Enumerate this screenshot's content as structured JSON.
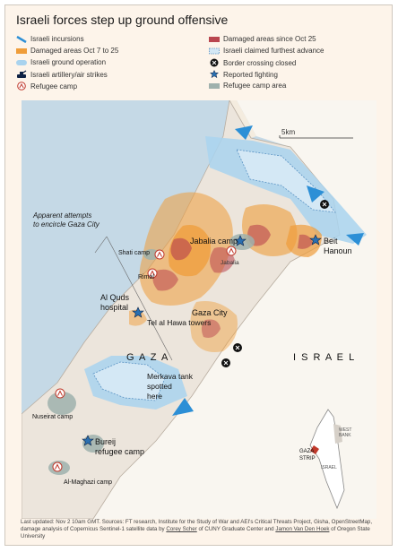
{
  "title": "Israeli forces step up ground offensive",
  "legend": {
    "incursions": "Israeli incursions",
    "damaged_early": "Damaged areas Oct 7 to 25",
    "ground_op": "Israeli ground operation",
    "artillery": "Israeli artillery/air strikes",
    "refugee_camp": "Refugee camp",
    "damaged_late": "Damaged areas since Oct 25",
    "claimed_advance": "Israeli claimed furthest advance",
    "border_closed": "Border crossing closed",
    "fighting": "Reported fighting",
    "camp_area": "Refugee camp area"
  },
  "colors": {
    "sea": "#c5d9e6",
    "land": "#f4ecdf",
    "israel": "#f9f6f0",
    "strip": "#ece5dc",
    "ops": "#a9d3ee",
    "damage_early": "#ef9d3a",
    "damage_late": "#b9464f",
    "navy": "#0f2244",
    "camp_red": "#c0392b"
  },
  "map": {
    "scale": "5km",
    "annotation": "Apparent attempts to encircle Gaza City",
    "region_gaza": "G A Z A",
    "region_israel": "I S R A E L",
    "places": {
      "jabalia_camp": "Jabalia camp",
      "beit_hanoun": "Beit Hanoun",
      "shati": "Shati camp",
      "jabalia": "Jabalia",
      "rimal": "Rimal",
      "al_quds": "Al Quds hospital",
      "gaza_city": "Gaza City",
      "tel_al_hawa": "Tel al Hawa towers",
      "merkava": "Merkava tank spotted here",
      "nuseirat": "Nuseirat camp",
      "bureij": "Bureij refugee camp",
      "maghazi": "Al-Maghazi camp"
    },
    "inset": {
      "gaza_strip": "GAZA STRIP",
      "west_bank": "WEST BANK",
      "israel": "ISRAEL"
    }
  },
  "footer": {
    "text": "Last updated: Nov 2 10am GMT. Sources: FT research, Institute for the Study of War and AEI's Critical Threats Project, Gisha, OpenStreetMap, damage analysis of Copernicus Sentinel-1 satellite data by",
    "name1": "Corey Scher",
    "mid": " of CUNY Graduate Center and ",
    "name2": "Jamon Van Den Hoek",
    "tail": " of Oregon State University"
  }
}
